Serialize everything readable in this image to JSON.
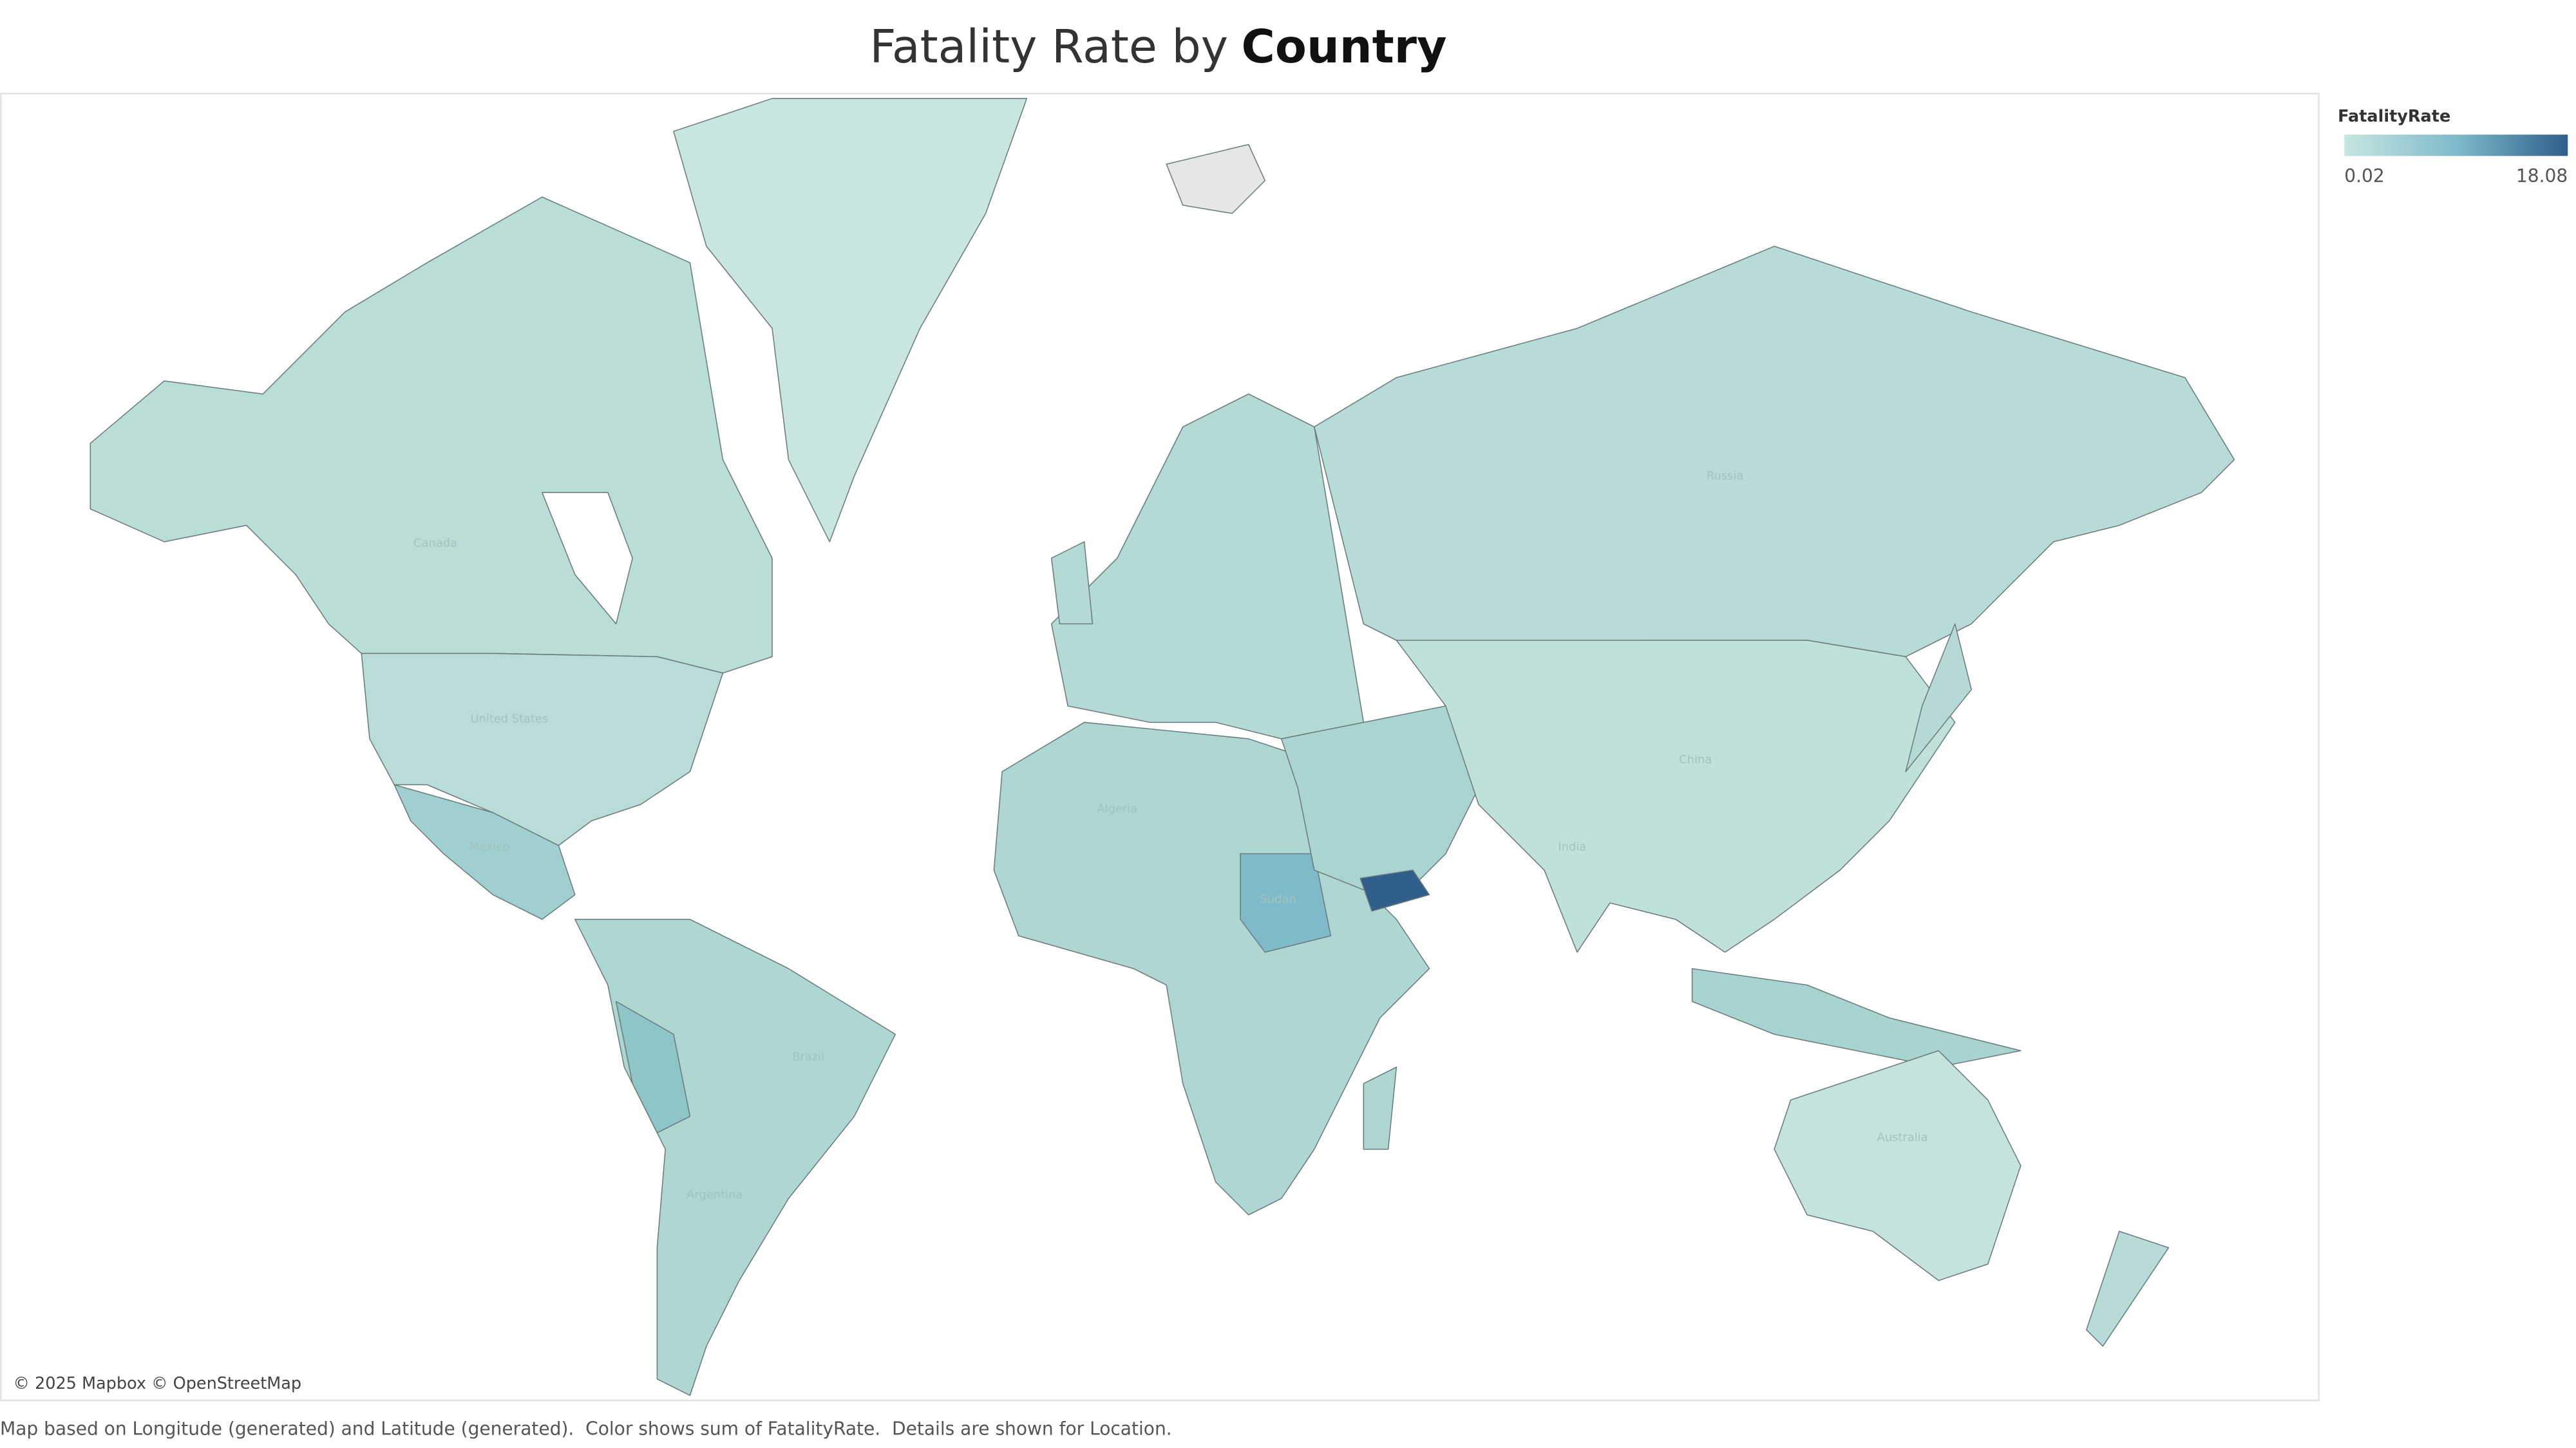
{
  "title": {
    "text": "Fatality Rate by",
    "emphasis": "Country"
  },
  "legend": {
    "title": "FatalityRate",
    "min": 0.02,
    "max": 18.08
  },
  "map": {
    "labels": [
      "Canada",
      "United States",
      "Mexico",
      "Brazil",
      "Russia",
      "China",
      "India",
      "Algeria",
      "Sudan",
      "Australia",
      "Argentina"
    ],
    "attribution": "© 2025 Mapbox © OpenStreetMap"
  },
  "caption": "Map based on Longitude (generated) and Latitude (generated).  Color shows sum of FatalityRate.  Details are shown for Location."
}
